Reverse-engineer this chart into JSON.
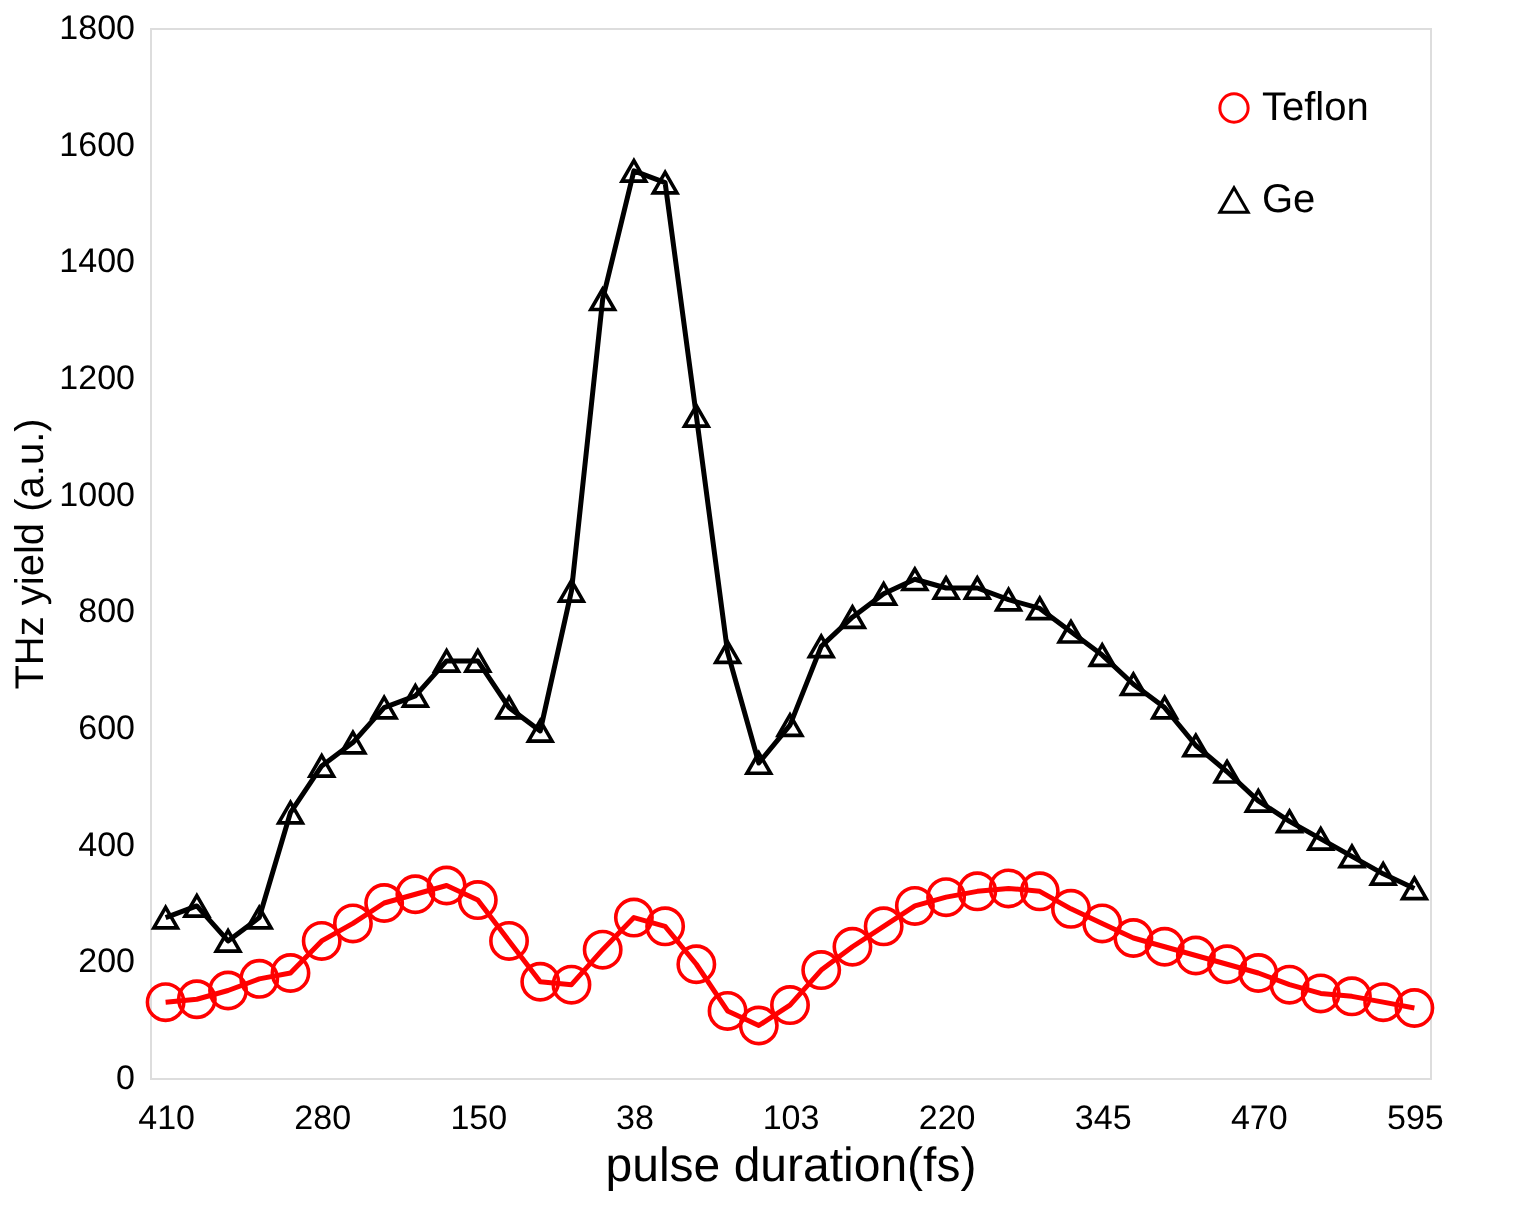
{
  "chart_data": {
    "type": "line",
    "xlabel": "pulse duration(fs)",
    "ylabel": "THz yield (a.u.)",
    "categories": [
      "410",
      null,
      null,
      null,
      null,
      "280",
      null,
      null,
      null,
      null,
      "150",
      null,
      null,
      null,
      null,
      "38",
      null,
      null,
      null,
      null,
      "103",
      null,
      null,
      null,
      null,
      "220",
      null,
      null,
      null,
      null,
      "345",
      null,
      null,
      null,
      null,
      "470",
      null,
      null,
      null,
      null,
      "595"
    ],
    "series": [
      {
        "name": "Teflon",
        "color": "#ff0000",
        "marker": "circle",
        "values": [
          130,
          135,
          150,
          170,
          180,
          235,
          265,
          300,
          315,
          330,
          305,
          235,
          165,
          160,
          220,
          275,
          260,
          195,
          115,
          90,
          125,
          185,
          225,
          260,
          295,
          310,
          320,
          325,
          320,
          290,
          265,
          240,
          225,
          210,
          195,
          180,
          160,
          145,
          140,
          130,
          120
        ]
      },
      {
        "name": "Ge",
        "color": "#000000",
        "marker": "triangle",
        "values": [
          275,
          295,
          235,
          275,
          455,
          535,
          575,
          635,
          655,
          715,
          715,
          635,
          595,
          835,
          1335,
          1555,
          1535,
          1135,
          730,
          540,
          605,
          740,
          790,
          830,
          855,
          840,
          840,
          820,
          805,
          765,
          725,
          675,
          635,
          570,
          525,
          475,
          440,
          410,
          380,
          350,
          325
        ]
      }
    ],
    "ylim": [
      0,
      1800
    ],
    "yticks": [
      0,
      200,
      400,
      600,
      800,
      1000,
      1200,
      1400,
      1600,
      1800
    ],
    "grid": false,
    "legend": "top right",
    "line_style": "solid"
  }
}
